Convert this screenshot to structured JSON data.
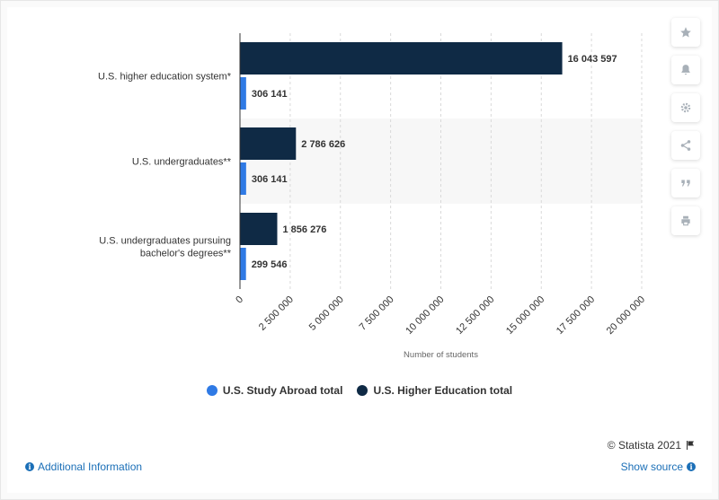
{
  "chart_data": {
    "type": "bar",
    "orientation": "horizontal",
    "categories": [
      "U.S. higher education system*",
      "U.S. undergraduates**",
      "U.S. undergraduates pursuing bachelor's degrees**"
    ],
    "series": [
      {
        "name": "U.S. Higher Education total",
        "color": "#0f2a45",
        "values": [
          16043597,
          2786626,
          1856276
        ],
        "labels": [
          "16 043 597",
          "2 786 626",
          "1 856 276"
        ]
      },
      {
        "name": "U.S. Study Abroad total",
        "color": "#2f7ae5",
        "values": [
          306141,
          306141,
          299546
        ],
        "labels": [
          "306 141",
          "306 141",
          "299 546"
        ]
      }
    ],
    "xlabel": "Number of students",
    "xlim": [
      0,
      20000000
    ],
    "x_ticks": [
      0,
      2500000,
      5000000,
      7500000,
      10000000,
      12500000,
      15000000,
      17500000,
      20000000
    ],
    "x_tick_labels": [
      "0",
      "2 500 000",
      "5 000 000",
      "7 500 000",
      "10 000 000",
      "12 500 000",
      "15 000 000",
      "17 500 000",
      "20 000 000"
    ],
    "grid": true,
    "legend_position": "bottom"
  },
  "legend": {
    "items": [
      {
        "label": "U.S. Study Abroad total",
        "color": "#2f7ae5"
      },
      {
        "label": "U.S. Higher Education total",
        "color": "#0f2a45"
      }
    ]
  },
  "sidebar": {
    "buttons": [
      {
        "icon": "star-icon"
      },
      {
        "icon": "bell-icon"
      },
      {
        "icon": "gear-icon"
      },
      {
        "icon": "share-icon"
      },
      {
        "icon": "quote-icon"
      },
      {
        "icon": "print-icon"
      }
    ]
  },
  "footer": {
    "copyright": "© Statista 2021",
    "additional_info": "Additional Information",
    "show_source": "Show source"
  }
}
